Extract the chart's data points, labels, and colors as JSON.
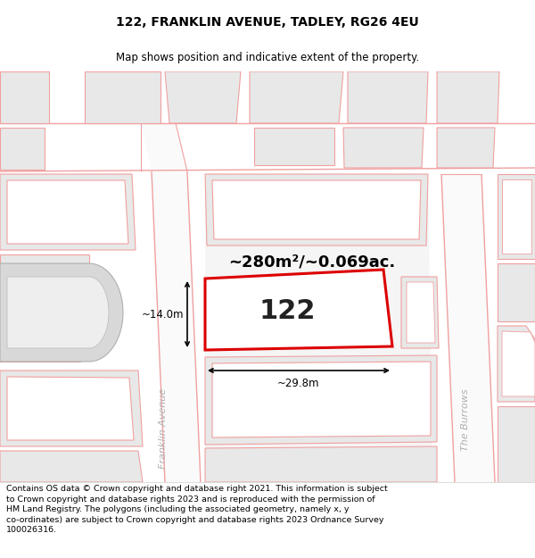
{
  "title": "122, FRANKLIN AVENUE, TADLEY, RG26 4EU",
  "subtitle": "Map shows position and indicative extent of the property.",
  "footer_lines": [
    "Contains OS data © Crown copyright and database right 2021. This information is subject",
    "to Crown copyright and database rights 2023 and is reproduced with the permission of",
    "HM Land Registry. The polygons (including the associated geometry, namely x, y",
    "co-ordinates) are subject to Crown copyright and database rights 2023 Ordnance Survey",
    "100026316."
  ],
  "area_text": "~280m²/~0.069ac.",
  "label_122": "122",
  "dim_width": "~29.8m",
  "dim_height": "~14.0m",
  "street_label_left": "Franklin Avenue",
  "street_label_right": "The Burrows",
  "road_color": "#f0a0a0",
  "bldg_fill": "#e8e8e8",
  "highlight_color": "#dd0000",
  "highlight_lw": 2.2,
  "title_fontsize": 10,
  "subtitle_fontsize": 8.5,
  "footer_fontsize": 6.8
}
